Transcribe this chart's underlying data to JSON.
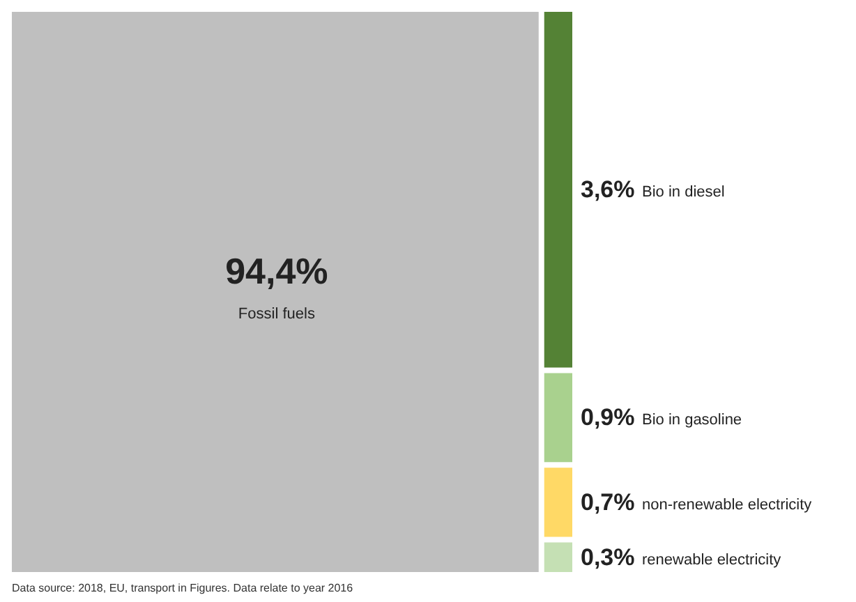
{
  "chart_data": {
    "type": "other",
    "categories": [
      "Fossil fuels",
      "Bio in diesel",
      "Bio in gasoline",
      "non-renewable electricity",
      "renewable electricity"
    ],
    "values": [
      94.4,
      3.6,
      0.9,
      0.7,
      0.3
    ],
    "value_labels": [
      "94,4%",
      "3,6%",
      "0,9%",
      "0,7%",
      "0,3%"
    ],
    "colors": [
      "#bfbfbf",
      "#548235",
      "#a9d18e",
      "#ffd966",
      "#c5e0b4"
    ],
    "annotations": [
      "Data source: 2018, EU, transport in Figures. Data relate to year 2016"
    ]
  }
}
